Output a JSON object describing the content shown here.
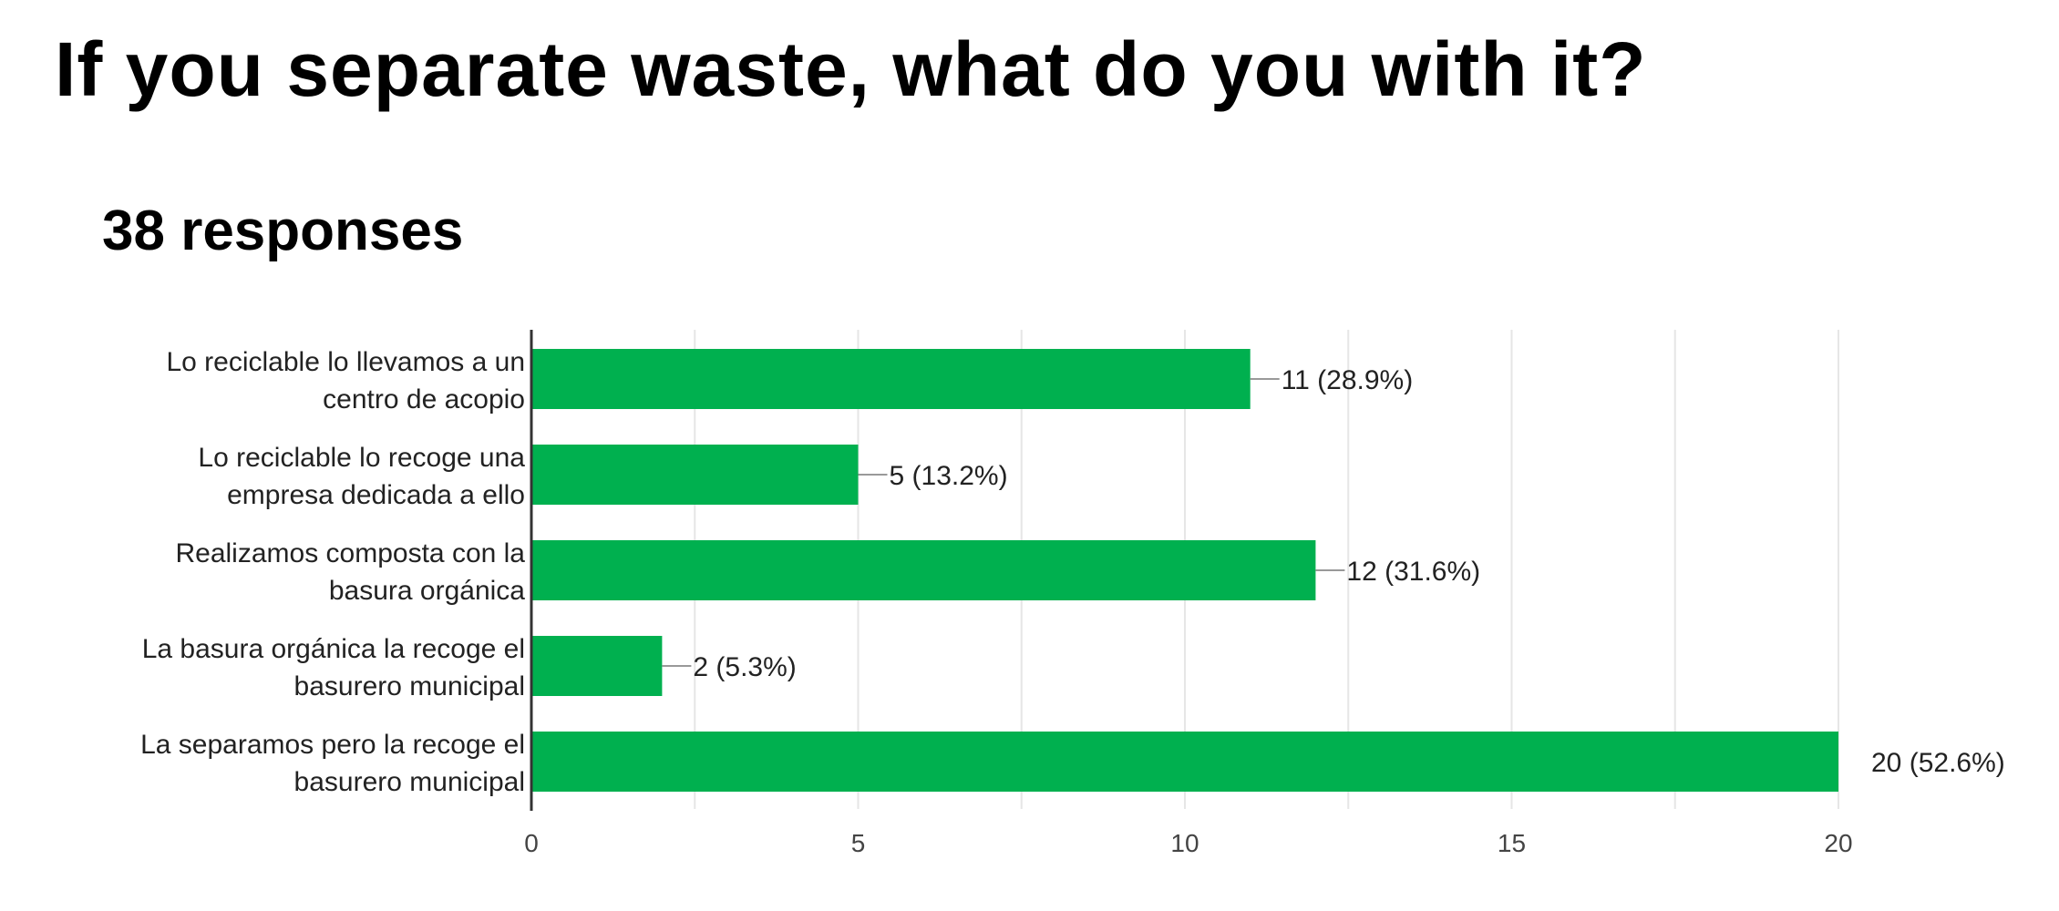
{
  "header": {
    "title": "If you separate waste, what do you with it?",
    "responses": "38 responses"
  },
  "chart_data": {
    "type": "bar",
    "orientation": "horizontal",
    "title": "If you separate waste, what do you with it?",
    "subtitle": "38 responses",
    "xlabel": "",
    "ylabel": "",
    "categories": [
      [
        "Lo reciclable lo llevamos a un",
        "centro de acopio"
      ],
      [
        "Lo reciclable lo recoge una",
        "empresa dedicada a ello"
      ],
      [
        "Realizamos composta con la",
        "basura orgánica"
      ],
      [
        "La basura orgánica la recoge el",
        "basurero municipal"
      ],
      [
        "La separamos pero la recoge el",
        "basurero municipal"
      ]
    ],
    "values": [
      11,
      5,
      12,
      2,
      20
    ],
    "data_labels": [
      "11 (28.9%)",
      "5 (13.2%)",
      "12 (31.6%)",
      "2 (5.3%)",
      "20 (52.6%)"
    ],
    "xlim": [
      0,
      20
    ],
    "xticks": [
      0,
      5,
      10,
      15,
      20
    ],
    "grid": true,
    "legend": "none",
    "colors": {
      "bar": "#00b04f",
      "grid": "#e6e6e6",
      "axis": "#333333",
      "leader": "#999999"
    }
  }
}
